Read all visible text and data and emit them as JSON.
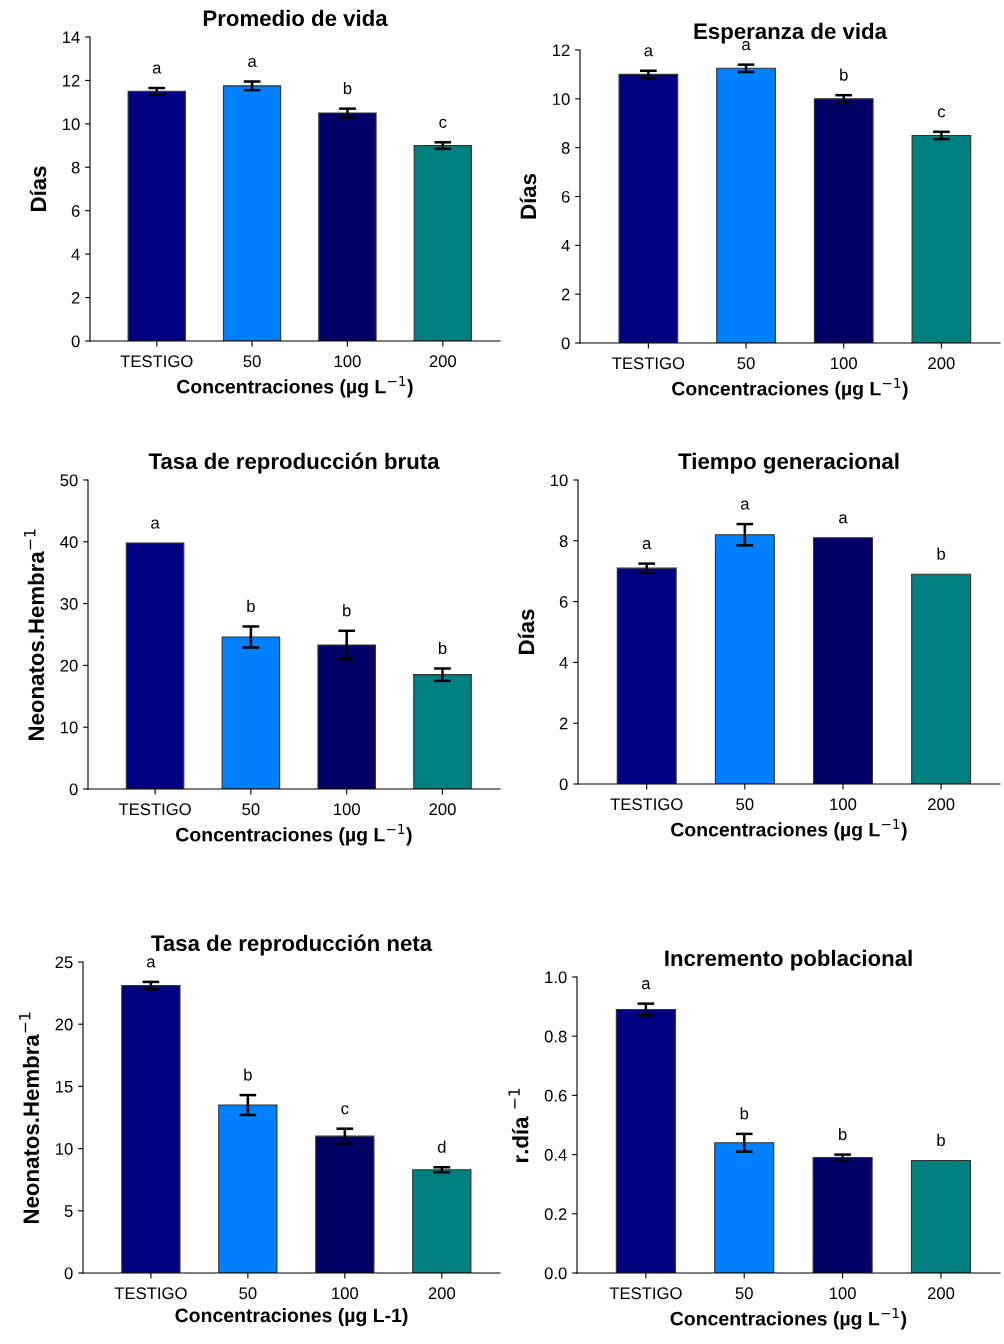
{
  "chart_data": [
    {
      "type": "bar",
      "title": "Promedio de vida",
      "xlabel": "Concentraciones (µg L$^{−1}$)",
      "ylabel": "Días",
      "categories": [
        "TESTIGO",
        "50",
        "100",
        "200"
      ],
      "values": [
        11.5,
        11.75,
        10.5,
        9.0
      ],
      "errors": [
        0.15,
        0.2,
        0.2,
        0.15
      ],
      "colors": [
        "#000080",
        "#0080ff",
        "#000066",
        "#008080"
      ],
      "ylim": [
        0,
        14
      ],
      "yticks": [
        0,
        2,
        4,
        6,
        8,
        10,
        12,
        14
      ],
      "grid": false,
      "value_labels": [
        "a",
        "a",
        "b",
        "c"
      ]
    },
    {
      "type": "bar",
      "title": "Esperanza de vida",
      "xlabel": "Concentraciones (µg L$^{−1}$)",
      "ylabel": "Días",
      "categories": [
        "TESTIGO",
        "50",
        "100",
        "200"
      ],
      "values": [
        11.0,
        11.25,
        10.0,
        8.5
      ],
      "errors": [
        0.15,
        0.15,
        0.15,
        0.15
      ],
      "colors": [
        "#000080",
        "#0080ff",
        "#000066",
        "#008080"
      ],
      "ylim": [
        0,
        12
      ],
      "yticks": [
        0,
        2,
        4,
        6,
        8,
        10,
        12
      ],
      "grid": false,
      "value_labels": [
        "a",
        "a",
        "b",
        "c"
      ]
    },
    {
      "type": "bar",
      "title": "Tasa de reproducción bruta",
      "xlabel": "Concentraciones (µg L$^{−1}$)",
      "ylabel": "Neonatos.Hembra$^{−1}$",
      "categories": [
        "TESTIGO",
        "50",
        "100",
        "200"
      ],
      "values": [
        39.8,
        24.6,
        23.3,
        18.5
      ],
      "errors": [
        null,
        1.7,
        2.3,
        1.0
      ],
      "colors": [
        "#000080",
        "#0080ff",
        "#000066",
        "#008080"
      ],
      "ylim": [
        0,
        50
      ],
      "yticks": [
        0,
        10,
        20,
        30,
        40,
        50
      ],
      "grid": false,
      "value_labels": [
        "a",
        "b",
        "b",
        "b"
      ]
    },
    {
      "type": "bar",
      "title": "Tiempo generacional",
      "xlabel": "Concentraciones (µg L$^{−1}$)",
      "ylabel": "Días",
      "categories": [
        "TESTIGO",
        "50",
        "100",
        "200"
      ],
      "values": [
        7.1,
        8.2,
        8.1,
        6.9
      ],
      "errors": [
        0.15,
        0.35,
        null,
        null
      ],
      "colors": [
        "#000080",
        "#0080ff",
        "#000066",
        "#008080"
      ],
      "ylim": [
        0,
        10
      ],
      "yticks": [
        0,
        2,
        4,
        6,
        8,
        10
      ],
      "grid": false,
      "value_labels": [
        "a",
        "a",
        "a",
        "b"
      ]
    },
    {
      "type": "bar",
      "title": "Tasa de reproducción neta",
      "xlabel": "Concentraciones (µg L-1)",
      "ylabel": "Neonatos.Hembra$^{−1}$",
      "categories": [
        "TESTIGO",
        "50",
        "100",
        "200"
      ],
      "values": [
        23.1,
        13.5,
        11.0,
        8.3
      ],
      "errors": [
        0.3,
        0.8,
        0.6,
        0.2
      ],
      "colors": [
        "#000080",
        "#0080ff",
        "#000066",
        "#008080"
      ],
      "ylim": [
        0,
        25
      ],
      "yticks": [
        0,
        5,
        10,
        15,
        20,
        25
      ],
      "grid": false,
      "value_labels": [
        "a",
        "b",
        "c",
        "d"
      ]
    },
    {
      "type": "bar",
      "title": "Incremento poblacional",
      "xlabel": "Concentraciones (µg L$^{−1}$)",
      "ylabel": "r.día $^{−1}$",
      "categories": [
        "TESTIGO",
        "50",
        "100",
        "200"
      ],
      "values": [
        0.89,
        0.44,
        0.39,
        0.38
      ],
      "errors": [
        0.02,
        0.03,
        0.01,
        null
      ],
      "colors": [
        "#000080",
        "#0080ff",
        "#000066",
        "#008080"
      ],
      "ylim": [
        0.0,
        1.0
      ],
      "yticks": [
        {
          "value": 0,
          "label": "0.0"
        },
        0.2,
        0.4,
        0.6,
        0.8,
        {
          "value": 1,
          "label": "1.0"
        }
      ],
      "grid": false,
      "value_labels": [
        "a",
        "b",
        "b",
        "b"
      ]
    }
  ]
}
